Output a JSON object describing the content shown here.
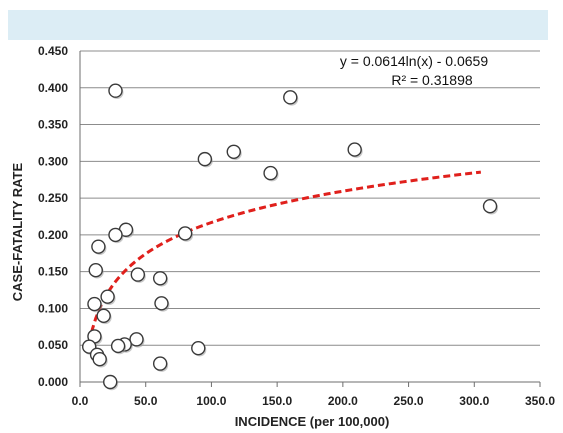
{
  "chart_data": {
    "type": "scatter",
    "title": "",
    "xlabel": "INCIDENCE (per 100,000)",
    "ylabel": "CASE-FATALITY RATE",
    "xlim": [
      0,
      350
    ],
    "ylim": [
      0,
      0.45
    ],
    "x_ticks": [
      "0.0",
      "50.0",
      "100.0",
      "150.0",
      "200.0",
      "250.0",
      "300.0",
      "350.0"
    ],
    "y_ticks": [
      "0.000",
      "0.050",
      "0.100",
      "0.150",
      "0.200",
      "0.250",
      "0.300",
      "0.350",
      "0.400",
      "0.450"
    ],
    "grid": "horizontal",
    "legend": "none",
    "points": [
      {
        "x": 27,
        "y": 0.396
      },
      {
        "x": 160,
        "y": 0.387
      },
      {
        "x": 209,
        "y": 0.316
      },
      {
        "x": 117,
        "y": 0.313
      },
      {
        "x": 95,
        "y": 0.303
      },
      {
        "x": 145,
        "y": 0.284
      },
      {
        "x": 312,
        "y": 0.239
      },
      {
        "x": 35,
        "y": 0.207
      },
      {
        "x": 80,
        "y": 0.202
      },
      {
        "x": 27,
        "y": 0.2
      },
      {
        "x": 14,
        "y": 0.184
      },
      {
        "x": 12,
        "y": 0.152
      },
      {
        "x": 44,
        "y": 0.146
      },
      {
        "x": 61,
        "y": 0.141
      },
      {
        "x": 21,
        "y": 0.116
      },
      {
        "x": 62,
        "y": 0.107
      },
      {
        "x": 11,
        "y": 0.106
      },
      {
        "x": 18,
        "y": 0.09
      },
      {
        "x": 11,
        "y": 0.062
      },
      {
        "x": 43,
        "y": 0.058
      },
      {
        "x": 34,
        "y": 0.051
      },
      {
        "x": 29,
        "y": 0.049
      },
      {
        "x": 7,
        "y": 0.048
      },
      {
        "x": 90,
        "y": 0.046
      },
      {
        "x": 13,
        "y": 0.037
      },
      {
        "x": 15,
        "y": 0.031
      },
      {
        "x": 61,
        "y": 0.025
      },
      {
        "x": 23,
        "y": 0.0
      }
    ],
    "trendline": {
      "type": "logarithmic",
      "a": 0.0614,
      "b": -0.0659,
      "x_range": [
        7,
        305
      ],
      "equation": "y = 0.0614ln(x) - 0.0659",
      "r_squared": "R² = 0.31898"
    },
    "colors": {
      "trendline": "#e0201c",
      "gridline": "#8c8c8c",
      "top_band": "#dcedf5"
    }
  }
}
